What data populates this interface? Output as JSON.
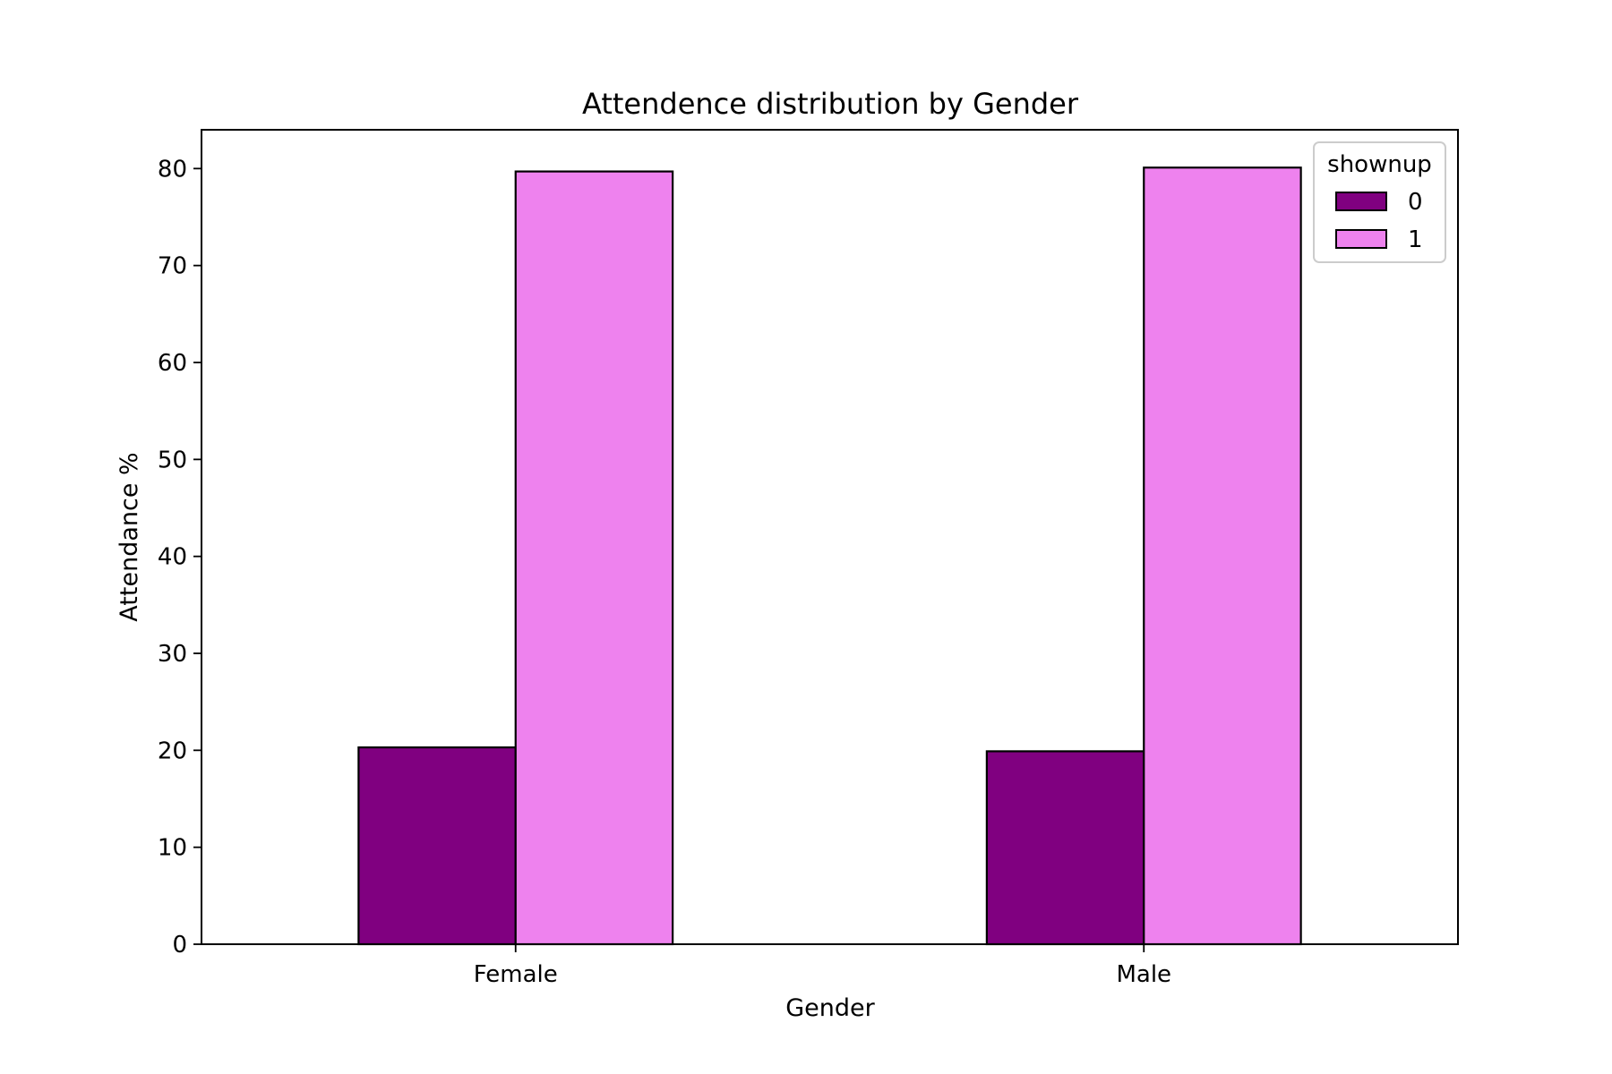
{
  "chart_data": {
    "type": "bar",
    "title": "Attendence distribution by Gender",
    "xlabel": "Gender",
    "ylabel": "Attendance %",
    "categories": [
      "Female",
      "Male"
    ],
    "series": [
      {
        "name": "0",
        "values": [
          20.3,
          19.9
        ],
        "color": "#800080"
      },
      {
        "name": "1",
        "values": [
          79.7,
          80.1
        ],
        "color": "#EE82EE"
      }
    ],
    "ylim": [
      0,
      84
    ],
    "yticks": [
      0,
      10,
      20,
      30,
      40,
      50,
      60,
      70,
      80
    ],
    "ytick_labels": [
      "0",
      "10",
      "20",
      "30",
      "40",
      "50",
      "60",
      "70",
      "80"
    ],
    "grid": false,
    "legend": {
      "title": "shownup",
      "placement": "top-right"
    },
    "bar_edge_color": "#000000"
  }
}
